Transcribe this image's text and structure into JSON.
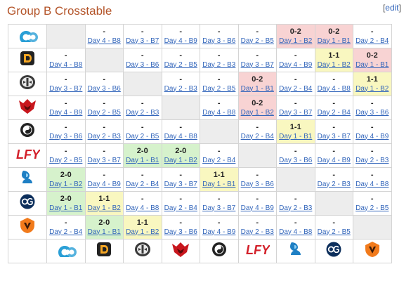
{
  "title": "Group B Crosstable",
  "edit_label": "edit",
  "teams": [
    {
      "name": "Cloud9",
      "icon": "cloud9-logo-icon",
      "color": "#2a9fd6"
    },
    {
      "name": "Dignitas",
      "icon": "dignitas-logo-icon",
      "color": "#f5a623"
    },
    {
      "name": "Immortals",
      "icon": "immortals-logo-icon",
      "color": "#6b6b6b"
    },
    {
      "name": "Hellraisers",
      "icon": "hellraisers-logo-icon",
      "color": "#c8161d"
    },
    {
      "name": "iG",
      "icon": "ig-logo-icon",
      "color": "#222222"
    },
    {
      "name": "LFY",
      "icon": "lfy-logo-icon",
      "color": "#d3202a"
    },
    {
      "name": "Newbee",
      "icon": "newbee-logo-icon",
      "color": "#1e7fc4"
    },
    {
      "name": "OG",
      "icon": "og-logo-icon",
      "color": "#0d2f5c"
    },
    {
      "name": "Virtus.pro",
      "icon": "virtuspro-logo-icon",
      "color": "#f17a1b"
    }
  ],
  "rows": [
    [
      {
        "type": "self"
      },
      {
        "s": "-",
        "d": "Day 4 - B8"
      },
      {
        "s": "-",
        "d": "Day 3 - B7"
      },
      {
        "s": "-",
        "d": "Day 4 - B9"
      },
      {
        "s": "-",
        "d": "Day 3 - B6"
      },
      {
        "s": "-",
        "d": "Day 2 - B5"
      },
      {
        "s": "0-2",
        "d": "Day 1 - B2",
        "r": "l"
      },
      {
        "s": "0-2",
        "d": "Day 1 - B1",
        "r": "l"
      },
      {
        "s": "-",
        "d": "Day 2 - B4"
      }
    ],
    [
      {
        "s": "-",
        "d": "Day 4 - B8"
      },
      {
        "type": "self"
      },
      {
        "s": "-",
        "d": "Day 3 - B6"
      },
      {
        "s": "-",
        "d": "Day 2 - B5"
      },
      {
        "s": "-",
        "d": "Day 2 - B3"
      },
      {
        "s": "-",
        "d": "Day 3 - B7"
      },
      {
        "s": "-",
        "d": "Day 4 - B9"
      },
      {
        "s": "1-1",
        "d": "Day 1 - B2",
        "r": "d"
      },
      {
        "s": "0-2",
        "d": "Day 1 - B1",
        "r": "l"
      }
    ],
    [
      {
        "s": "-",
        "d": "Day 3 - B7"
      },
      {
        "s": "-",
        "d": "Day 3 - B6"
      },
      {
        "type": "self"
      },
      {
        "s": "-",
        "d": "Day 2 - B3"
      },
      {
        "s": "-",
        "d": "Day 2 - B5"
      },
      {
        "s": "0-2",
        "d": "Day 1 - B1",
        "r": "l"
      },
      {
        "s": "-",
        "d": "Day 2 - B4"
      },
      {
        "s": "-",
        "d": "Day 4 - B8"
      },
      {
        "s": "1-1",
        "d": "Day 1 - B2",
        "r": "d"
      }
    ],
    [
      {
        "s": "-",
        "d": "Day 4 - B9"
      },
      {
        "s": "-",
        "d": "Day 2 - B5"
      },
      {
        "s": "-",
        "d": "Day 2 - B3"
      },
      {
        "type": "self"
      },
      {
        "s": "-",
        "d": "Day 4 - B8"
      },
      {
        "s": "0-2",
        "d": "Day 1 - B2",
        "r": "l"
      },
      {
        "s": "-",
        "d": "Day 3 - B7"
      },
      {
        "s": "-",
        "d": "Day 2 - B4"
      },
      {
        "s": "-",
        "d": "Day 3 - B6"
      }
    ],
    [
      {
        "s": "-",
        "d": "Day 3 - B6"
      },
      {
        "s": "-",
        "d": "Day 2 - B3"
      },
      {
        "s": "-",
        "d": "Day 2 - B5"
      },
      {
        "s": "-",
        "d": "Day 4 - B8"
      },
      {
        "type": "self"
      },
      {
        "s": "-",
        "d": "Day 2 - B4"
      },
      {
        "s": "1-1",
        "d": "Day 1 - B1",
        "r": "d"
      },
      {
        "s": "-",
        "d": "Day 3 - B7"
      },
      {
        "s": "-",
        "d": "Day 4 - B9"
      }
    ],
    [
      {
        "s": "-",
        "d": "Day 2 - B5"
      },
      {
        "s": "-",
        "d": "Day 3 - B7"
      },
      {
        "s": "2-0",
        "d": "Day 1 - B1",
        "r": "w"
      },
      {
        "s": "2-0",
        "d": "Day 1 - B2",
        "r": "w"
      },
      {
        "s": "-",
        "d": "Day 2 - B4"
      },
      {
        "type": "self"
      },
      {
        "s": "-",
        "d": "Day 3 - B6"
      },
      {
        "s": "-",
        "d": "Day 4 - B9"
      },
      {
        "s": "-",
        "d": "Day 2 - B3"
      }
    ],
    [
      {
        "s": "2-0",
        "d": "Day 1 - B2",
        "r": "w"
      },
      {
        "s": "-",
        "d": "Day 4 - B9"
      },
      {
        "s": "-",
        "d": "Day 2 - B4"
      },
      {
        "s": "-",
        "d": "Day 3 - B7"
      },
      {
        "s": "1-1",
        "d": "Day 1 - B1",
        "r": "d"
      },
      {
        "s": "-",
        "d": "Day 3 - B6"
      },
      {
        "type": "self"
      },
      {
        "s": "-",
        "d": "Day 2 - B3"
      },
      {
        "s": "-",
        "d": "Day 4 - B8"
      }
    ],
    [
      {
        "s": "2-0",
        "d": "Day 1 - B1",
        "r": "w"
      },
      {
        "s": "1-1",
        "d": "Day 1 - B2",
        "r": "d"
      },
      {
        "s": "-",
        "d": "Day 4 - B8"
      },
      {
        "s": "-",
        "d": "Day 2 - B4"
      },
      {
        "s": "-",
        "d": "Day 3 - B7"
      },
      {
        "s": "-",
        "d": "Day 4 - B9"
      },
      {
        "s": "-",
        "d": "Day 2 - B3"
      },
      {
        "type": "self"
      },
      {
        "s": "-",
        "d": "Day 2 - B5"
      }
    ],
    [
      {
        "s": "-",
        "d": "Day 2 - B4"
      },
      {
        "s": "2-0",
        "d": "Day 1 - B1",
        "r": "w"
      },
      {
        "s": "1-1",
        "d": "Day 1 - B2",
        "r": "d"
      },
      {
        "s": "-",
        "d": "Day 3 - B6"
      },
      {
        "s": "-",
        "d": "Day 4 - B9"
      },
      {
        "s": "-",
        "d": "Day 2 - B3"
      },
      {
        "s": "-",
        "d": "Day 4 - B8"
      },
      {
        "s": "-",
        "d": "Day 2 - B5"
      },
      {
        "type": "self"
      }
    ]
  ]
}
